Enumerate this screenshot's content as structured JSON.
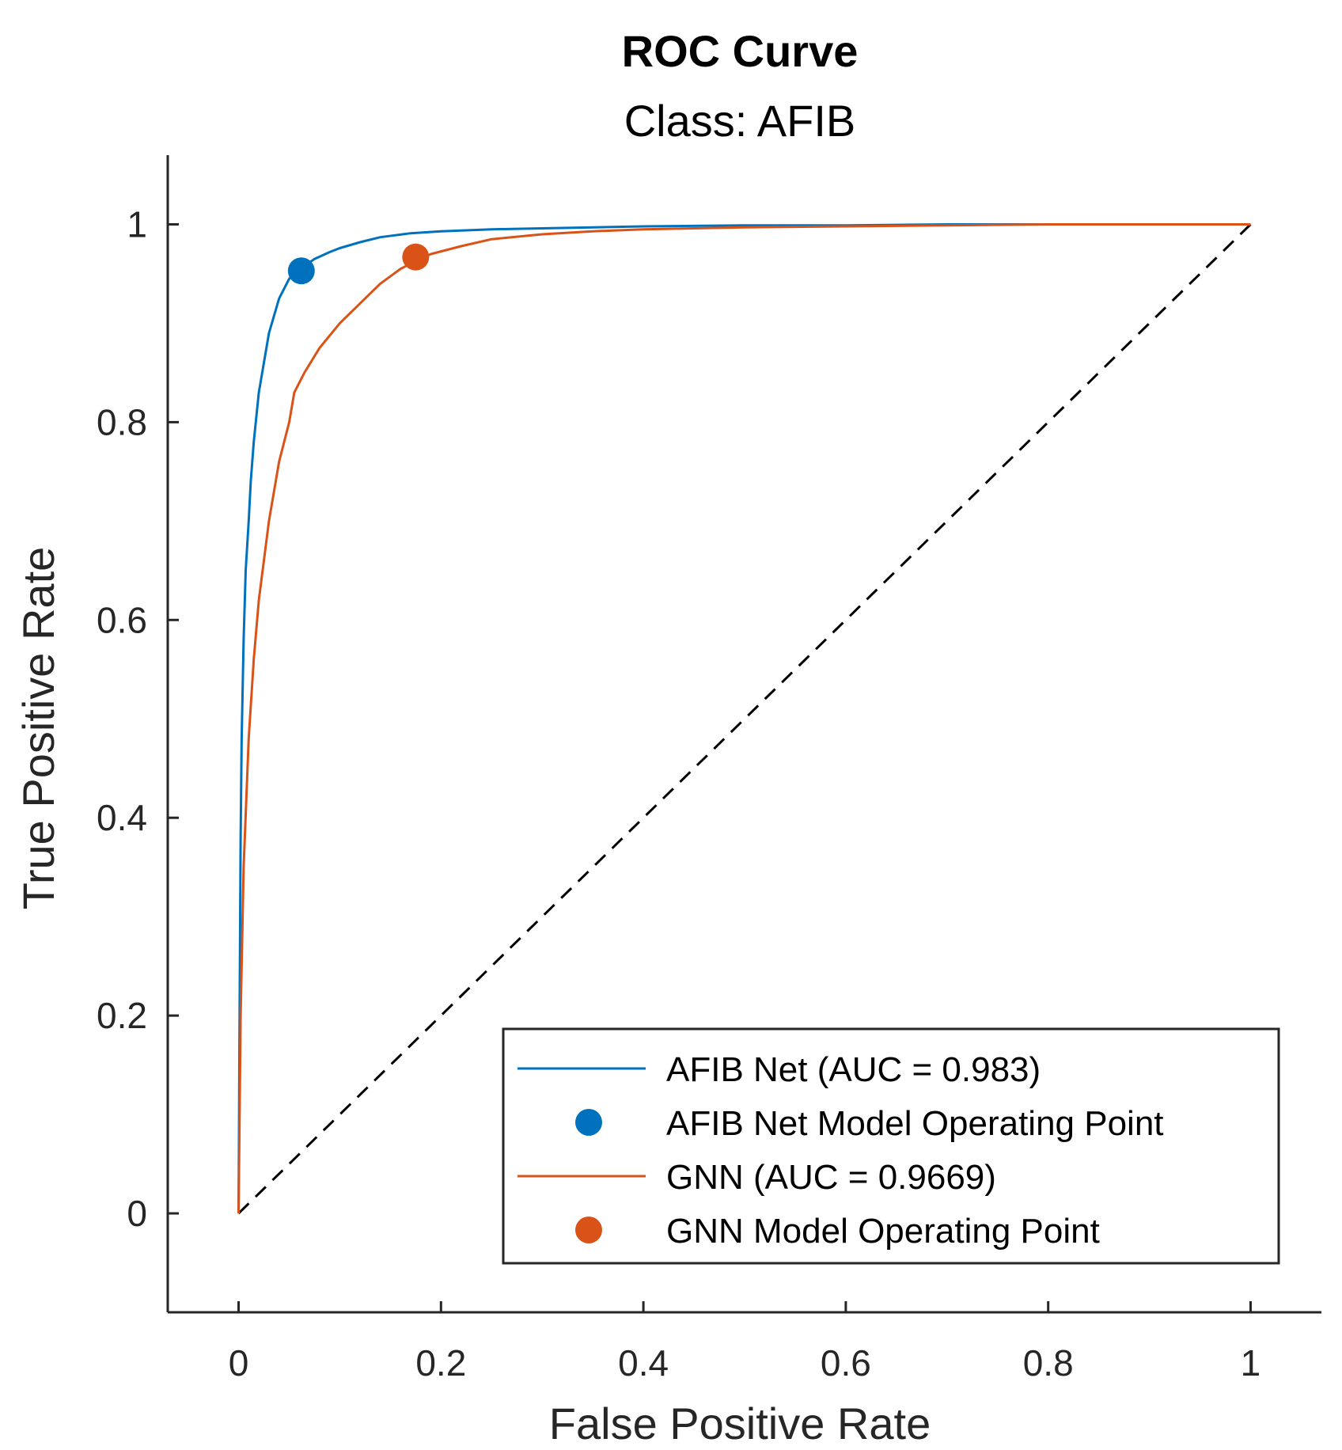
{
  "chart_data": {
    "type": "line",
    "title": "ROC Curve",
    "subtitle": "Class: AFIB",
    "xlabel": "False Positive Rate",
    "ylabel": "True Positive Rate",
    "xlim": [
      -0.07,
      1.07
    ],
    "ylim": [
      -0.1,
      1.07
    ],
    "xticks": [
      0,
      0.2,
      0.4,
      0.6,
      0.8,
      1
    ],
    "xtick_labels": [
      "0",
      "0.2",
      "0.4",
      "0.6",
      "0.8",
      "1"
    ],
    "yticks": [
      0,
      0.2,
      0.4,
      0.6,
      0.8,
      1
    ],
    "ytick_labels": [
      "0",
      "0.2",
      "0.4",
      "0.6",
      "0.8",
      "1"
    ],
    "grid": false,
    "legend_position": "bottom-right",
    "series": [
      {
        "name": "AFIB Net (AUC = 0.983)",
        "color": "#0072BD",
        "x": [
          0,
          0.001,
          0.002,
          0.003,
          0.005,
          0.007,
          0.01,
          0.012,
          0.015,
          0.02,
          0.025,
          0.03,
          0.04,
          0.05,
          0.06,
          0.065,
          0.075,
          0.09,
          0.1,
          0.12,
          0.14,
          0.17,
          0.2,
          0.25,
          0.3,
          0.4,
          0.5,
          0.6,
          0.7,
          0.8,
          0.9,
          1.0
        ],
        "y": [
          0,
          0.2,
          0.38,
          0.48,
          0.58,
          0.65,
          0.7,
          0.74,
          0.78,
          0.83,
          0.86,
          0.89,
          0.925,
          0.945,
          0.955,
          0.958,
          0.965,
          0.972,
          0.976,
          0.982,
          0.987,
          0.991,
          0.993,
          0.995,
          0.996,
          0.998,
          0.999,
          0.999,
          1.0,
          1.0,
          1.0,
          1.0
        ]
      },
      {
        "name": "GNN (AUC = 0.9669)",
        "color": "#D95319",
        "x": [
          0,
          0.002,
          0.005,
          0.01,
          0.015,
          0.02,
          0.03,
          0.04,
          0.05,
          0.055,
          0.065,
          0.08,
          0.1,
          0.12,
          0.14,
          0.16,
          0.175,
          0.19,
          0.22,
          0.25,
          0.3,
          0.35,
          0.4,
          0.5,
          0.6,
          0.7,
          0.8,
          0.9,
          1.0
        ],
        "y": [
          0,
          0.2,
          0.35,
          0.48,
          0.56,
          0.62,
          0.7,
          0.76,
          0.8,
          0.83,
          0.85,
          0.875,
          0.9,
          0.92,
          0.94,
          0.955,
          0.963,
          0.97,
          0.978,
          0.985,
          0.99,
          0.993,
          0.995,
          0.997,
          0.998,
          0.999,
          1.0,
          1.0,
          1.0
        ]
      }
    ],
    "operating_points": [
      {
        "name": "AFIB Net Model Operating Point",
        "color": "#0072BD",
        "x": 0.062,
        "y": 0.953
      },
      {
        "name": "GNN Model Operating Point",
        "color": "#D95319",
        "x": 0.175,
        "y": 0.967
      }
    ],
    "reference_line": {
      "x": [
        0,
        1
      ],
      "y": [
        0,
        1
      ],
      "style": "dashed",
      "color": "#000000"
    },
    "legend": [
      {
        "label": "AFIB Net (AUC = 0.983)",
        "kind": "line",
        "color": "#0072BD"
      },
      {
        "label": "AFIB Net Model Operating Point",
        "kind": "marker",
        "color": "#0072BD"
      },
      {
        "label": "GNN (AUC = 0.9669)",
        "kind": "line",
        "color": "#D95319"
      },
      {
        "label": "GNN Model Operating Point",
        "kind": "marker",
        "color": "#D95319"
      }
    ]
  }
}
